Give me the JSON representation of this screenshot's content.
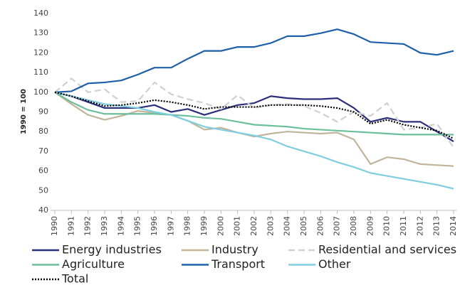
{
  "chart_data": {
    "type": "line",
    "y_label": "1990 = 100",
    "categories": [
      "1990",
      "1991",
      "1992",
      "1993",
      "1994",
      "1995",
      "1996",
      "1997",
      "1998",
      "1999",
      "2000",
      "2001",
      "2002",
      "2003",
      "2004",
      "2005",
      "2006",
      "2007",
      "2008",
      "2009",
      "2010",
      "2011",
      "2012",
      "2013",
      "2014"
    ],
    "ylim": [
      40,
      140
    ],
    "yticks": [
      40,
      50,
      60,
      70,
      80,
      90,
      100,
      110,
      120,
      130,
      140
    ],
    "grid": false,
    "series": [
      {
        "name": "Energy industries",
        "color": "#2b2f7a",
        "style": "solid",
        "values": [
          100,
          98,
          95,
          92,
          92,
          92,
          93.5,
          90,
          91.5,
          88.5,
          91,
          93.5,
          94.5,
          98,
          97,
          96.5,
          96.5,
          97,
          92,
          85,
          87,
          85,
          85,
          80,
          75
        ]
      },
      {
        "name": "Industry",
        "color": "#c2b49a",
        "style": "solid",
        "values": [
          100,
          94,
          88.5,
          86,
          88,
          90.5,
          89.5,
          88.5,
          85.5,
          81,
          82,
          79.5,
          77.5,
          79,
          80,
          79.5,
          79,
          79.5,
          76,
          63.5,
          67,
          66,
          63.5,
          63,
          62.5
        ]
      },
      {
        "name": "Residential and services",
        "color": "#d0d0d0",
        "style": "dashed",
        "values": [
          100,
          107,
          100,
          101.5,
          95,
          95.5,
          105,
          99,
          96.5,
          94.5,
          91.5,
          98.5,
          92,
          93.5,
          94,
          93,
          89.5,
          85,
          90,
          88,
          94.5,
          81,
          82,
          84,
          72
        ]
      },
      {
        "name": "Agriculture",
        "color": "#6dbf9b",
        "style": "solid",
        "values": [
          100,
          95,
          91,
          89,
          89,
          89,
          89,
          88.5,
          88,
          87,
          86.5,
          85,
          83.5,
          83,
          82.5,
          81.5,
          81,
          80.5,
          80,
          79.5,
          79,
          78.5,
          78.5,
          78.5,
          78.5
        ]
      },
      {
        "name": "Transport",
        "color": "#1f5ea8",
        "style": "solid",
        "values": [
          100,
          100.5,
          104.5,
          105,
          106,
          109,
          112.5,
          112.5,
          117,
          121,
          121,
          123,
          123,
          125,
          128.5,
          128.5,
          130,
          132,
          129.5,
          125.5,
          125,
          124.5,
          120,
          119,
          121
        ]
      },
      {
        "name": "Other",
        "color": "#7fcde0",
        "style": "solid",
        "values": [
          100,
          98,
          96,
          94,
          93,
          92,
          90,
          88.5,
          85.5,
          82.5,
          81,
          79.5,
          78,
          76,
          72.5,
          70,
          67.5,
          64.5,
          62,
          59,
          57.5,
          56,
          54.5,
          53,
          51
        ]
      },
      {
        "name": "Total",
        "color": "#000000",
        "style": "dotted",
        "values": [
          100,
          98,
          95.5,
          93,
          93.5,
          94.5,
          96,
          95,
          93.5,
          91.5,
          92.5,
          92.5,
          92.5,
          93.5,
          93.5,
          93.5,
          93,
          92,
          90,
          84,
          86,
          83.5,
          82,
          80.5,
          76.5
        ]
      }
    ]
  }
}
